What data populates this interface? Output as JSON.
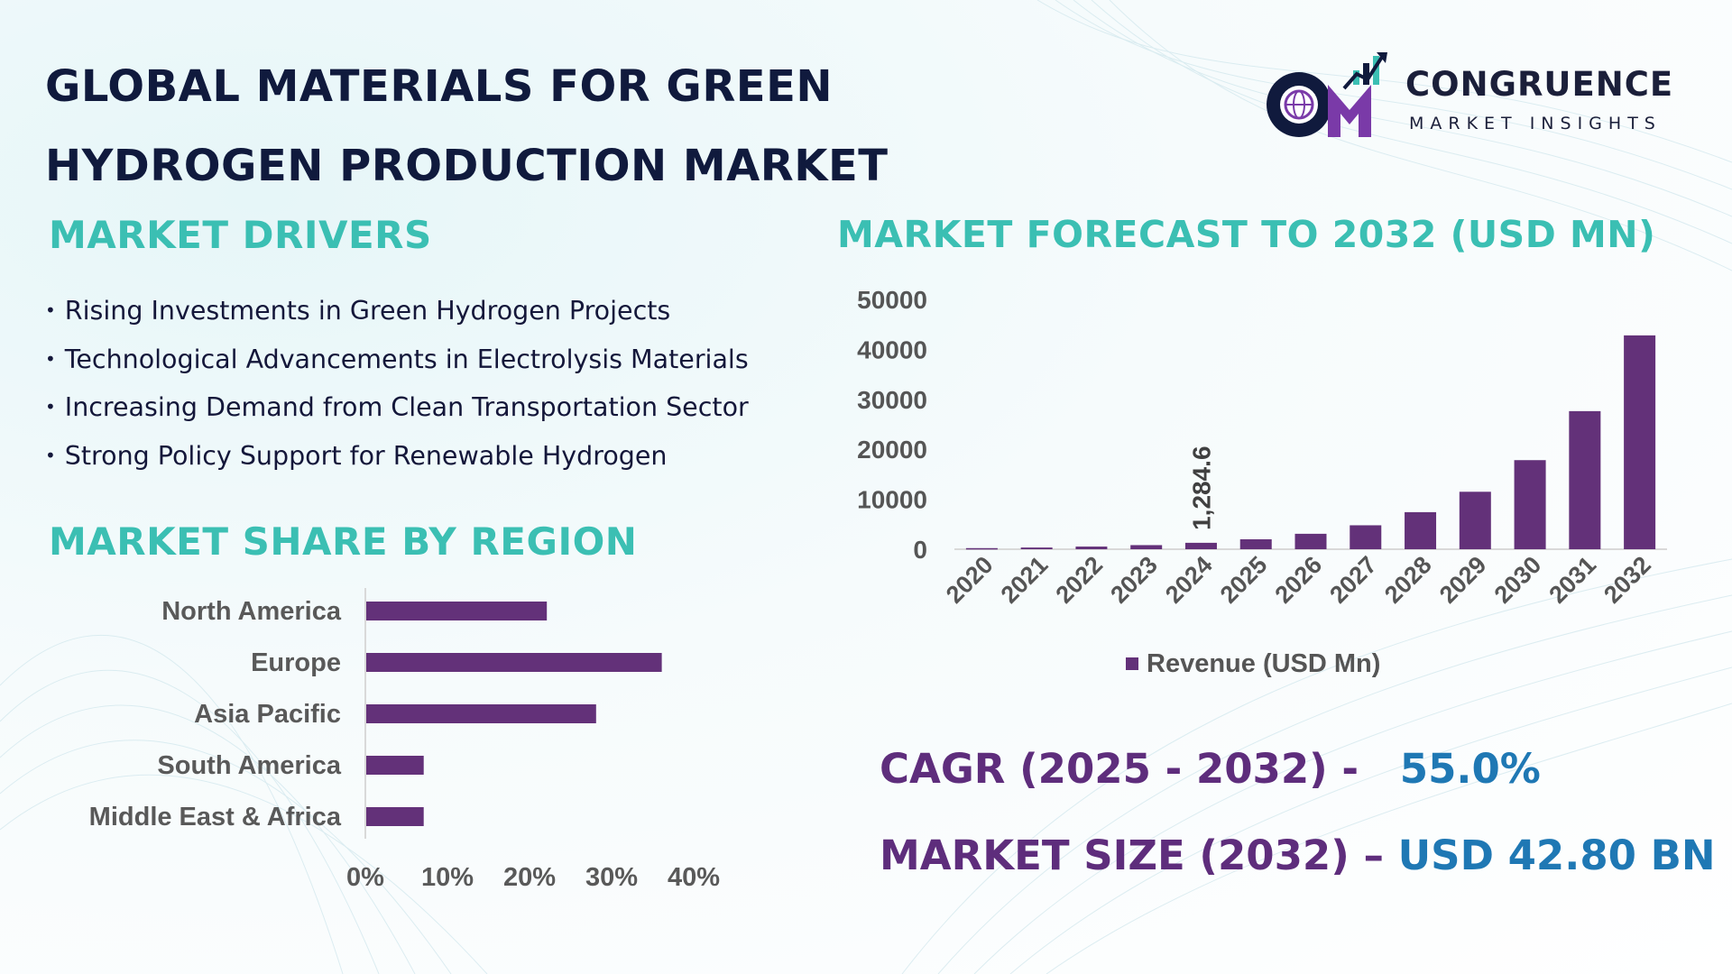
{
  "title": {
    "line1": "GLOBAL MATERIALS FOR GREEN",
    "line2": "HYDROGEN PRODUCTION MARKET"
  },
  "logo": {
    "initials": "CM",
    "name": "CONGRUENCE",
    "tagline": "MARKET INSIGHTS"
  },
  "drivers": {
    "heading": "MARKET DRIVERS",
    "items": [
      "Rising Investments in Green Hydrogen Projects",
      "Technological Advancements in Electrolysis Materials",
      "Increasing Demand from Clean Transportation Sector",
      "Strong Policy Support for Renewable Hydrogen"
    ]
  },
  "kpis": {
    "cagr_label": "CAGR (2025 - 2032) -",
    "cagr_value": "55.0%",
    "size_label": "MARKET SIZE (2032) –",
    "size_value": "USD 42.80 BN"
  },
  "colors": {
    "bar": "#633179",
    "heading": "#3bbfb3",
    "title": "#101a3d",
    "kpi_label": "#5e2d7c",
    "kpi_value": "#1f78b4"
  },
  "chart_data": [
    {
      "type": "bar",
      "orientation": "vertical",
      "title": "MARKET FORECAST TO 2032 (USD MN)",
      "categories": [
        "2020",
        "2021",
        "2022",
        "2023",
        "2024",
        "2025",
        "2026",
        "2027",
        "2028",
        "2029",
        "2030",
        "2031",
        "2032"
      ],
      "series": [
        {
          "name": "Revenue (USD Mn)",
          "values": [
            220,
            340,
            530,
            820,
            1284.6,
            1990,
            3090,
            4790,
            7420,
            11500,
            17830,
            27640,
            42800
          ]
        }
      ],
      "data_labels": [
        {
          "category": "2024",
          "text": "1,284.6"
        }
      ],
      "yticks": [
        "0",
        "10000",
        "20000",
        "30000",
        "40000",
        "50000"
      ],
      "ylim": [
        0,
        50000
      ],
      "grid": false,
      "legend": "bottom"
    },
    {
      "type": "bar",
      "orientation": "horizontal",
      "title": "MARKET SHARE BY REGION",
      "categories": [
        "North America",
        "Europe",
        "Asia Pacific",
        "South America",
        "Middle East & Africa"
      ],
      "values": [
        22,
        36,
        28,
        7,
        7
      ],
      "xticks": [
        "0%",
        "10%",
        "20%",
        "30%",
        "40%"
      ],
      "xlim": [
        0,
        40
      ],
      "grid": false,
      "legend": "none"
    }
  ]
}
